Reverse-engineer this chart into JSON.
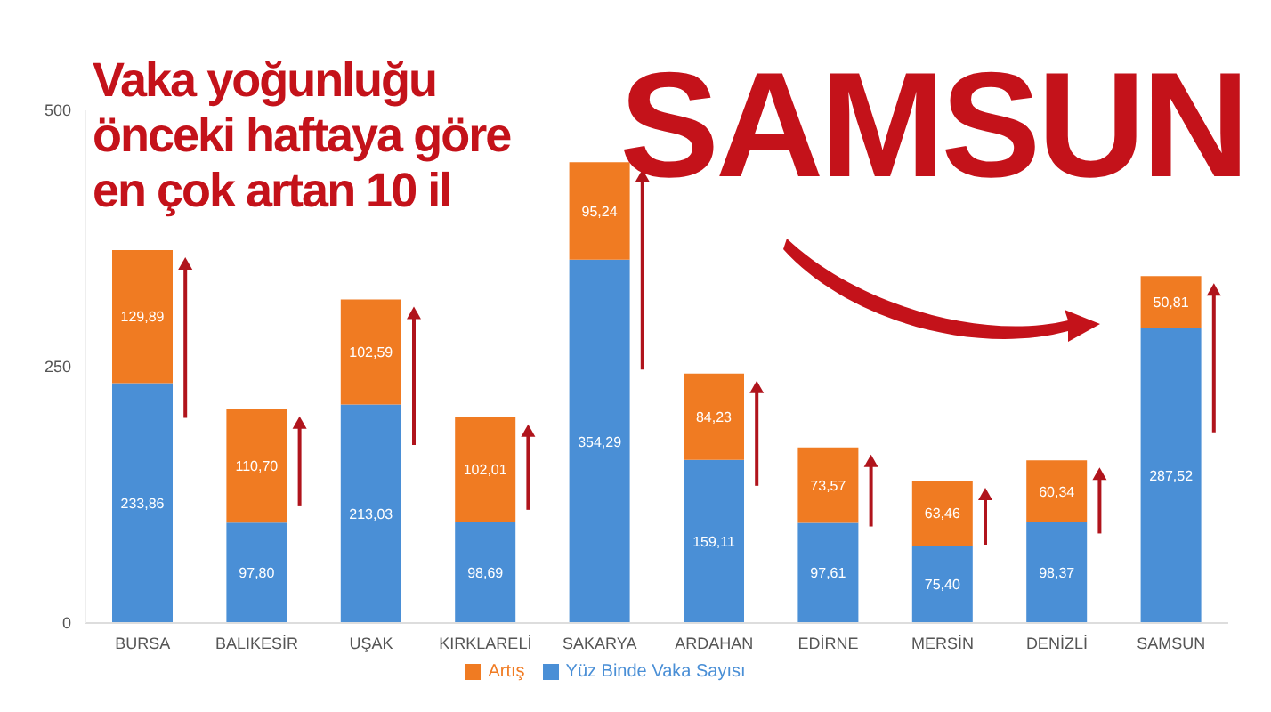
{
  "chart_data": {
    "type": "bar",
    "title": "Vaka yoğunluğu önceki haftaya göre en çok artan 10 il",
    "annotations": [
      "SAMSUN"
    ],
    "categories": [
      "BURSA",
      "BALIKESİR",
      "UŞAK",
      "KIRKLARELİ",
      "SAKARYA",
      "ARDAHAN",
      "EDİRNE",
      "MERSİN",
      "DENİZLİ",
      "SAMSUN"
    ],
    "stacked": true,
    "series": [
      {
        "name": "Yüz Binde Vaka Sayısı",
        "color": "#4a8fd6",
        "values": [
          233.86,
          97.8,
          213.03,
          98.69,
          354.29,
          159.11,
          97.61,
          75.4,
          98.37,
          287.52
        ],
        "value_labels": [
          "233,86",
          "97,80",
          "213,03",
          "98,69",
          "354,29",
          "159,11",
          "97,61",
          "75,40",
          "98,37",
          "287,52"
        ]
      },
      {
        "name": "Artış",
        "color": "#f07b22",
        "values": [
          129.89,
          110.7,
          102.59,
          102.01,
          95.24,
          84.23,
          73.57,
          63.46,
          60.34,
          50.81
        ],
        "value_labels": [
          "129,89",
          "110,70",
          "102,59",
          "102,01",
          "95,24",
          "84,23",
          "73,57",
          "63,46",
          "60,34",
          "50,81"
        ]
      }
    ],
    "ylim": [
      0,
      500
    ],
    "yticks": [
      0,
      250,
      500
    ],
    "grid": false,
    "legend": "bottom"
  }
}
